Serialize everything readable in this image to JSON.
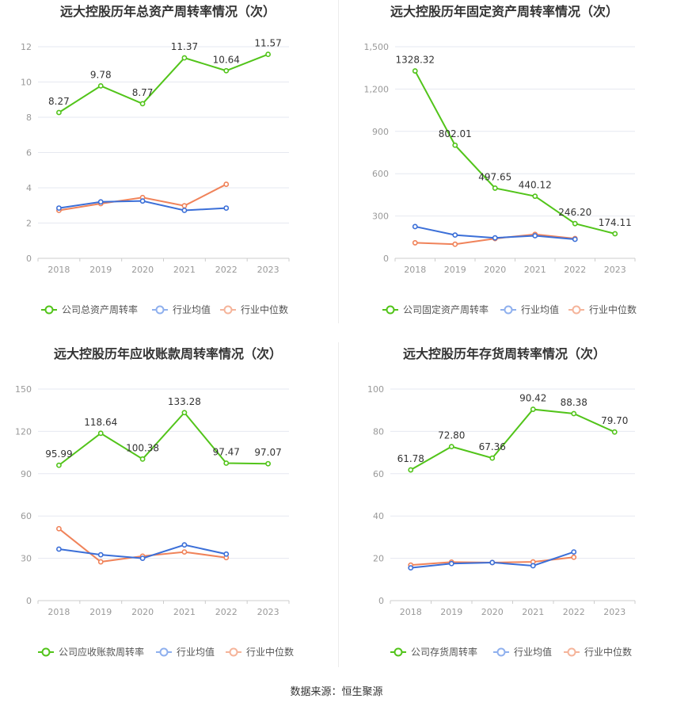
{
  "footer": {
    "source": "数据来源：恒生聚源"
  },
  "legend": {
    "company_total": "公司总资产周转率",
    "company_fixed": "公司固定资产周转率",
    "company_ar": "公司应收账款周转率",
    "company_inv": "公司存货周转率",
    "industry_avg": "行业均值",
    "industry_median": "行业中位数"
  },
  "colors": {
    "company": "#52c41a",
    "avg": "#3b6fd8",
    "median": "#f0835a",
    "grid": "#e6e8f0",
    "axis": "#999999",
    "title": "#333333"
  },
  "chart_data": [
    {
      "type": "line",
      "title": "远大控股历年总资产周转率情况（次）",
      "categories": [
        "2018",
        "2019",
        "2020",
        "2021",
        "2022",
        "2023"
      ],
      "ylim": [
        0,
        12
      ],
      "yticks": [
        0,
        2,
        4,
        6,
        8,
        10,
        12
      ],
      "ytick_labels": [
        "0",
        "2",
        "4",
        "6",
        "8",
        "10",
        "12"
      ],
      "series": [
        {
          "name": "公司总资产周转率",
          "values": [
            8.27,
            9.78,
            8.77,
            11.37,
            10.64,
            11.57
          ],
          "labels": [
            "8.27",
            "9.78",
            "8.77",
            "11.37",
            "10.64",
            "11.57"
          ]
        },
        {
          "name": "行业均值",
          "values": [
            2.85,
            3.2,
            3.25,
            2.72,
            2.85,
            null
          ]
        },
        {
          "name": "行业中位数",
          "values": [
            2.72,
            3.1,
            3.45,
            2.98,
            4.2,
            null
          ]
        }
      ]
    },
    {
      "type": "line",
      "title": "远大控股历年固定资产周转率情况（次）",
      "categories": [
        "2018",
        "2019",
        "2020",
        "2021",
        "2022",
        "2023"
      ],
      "ylim": [
        0,
        1500
      ],
      "yticks": [
        0,
        300,
        600,
        900,
        1200,
        1500
      ],
      "ytick_labels": [
        "0",
        "300",
        "600",
        "900",
        "1,200",
        "1,500"
      ],
      "series": [
        {
          "name": "公司固定资产周转率",
          "values": [
            1328.32,
            802.01,
            497.65,
            440.12,
            246.2,
            174.11
          ],
          "labels": [
            "1328.32",
            "802.01",
            "497.65",
            "440.12",
            "246.20",
            "174.11"
          ]
        },
        {
          "name": "行业均值",
          "values": [
            225,
            165,
            145,
            160,
            135,
            null
          ]
        },
        {
          "name": "行业中位数",
          "values": [
            110,
            100,
            140,
            170,
            140,
            null
          ]
        }
      ]
    },
    {
      "type": "line",
      "title": "远大控股历年应收账款周转率情况（次）",
      "categories": [
        "2018",
        "2019",
        "2020",
        "2021",
        "2022",
        "2023"
      ],
      "ylim": [
        0,
        150
      ],
      "yticks": [
        0,
        30,
        60,
        90,
        120,
        150
      ],
      "ytick_labels": [
        "0",
        "30",
        "60",
        "90",
        "120",
        "150"
      ],
      "series": [
        {
          "name": "公司应收账款周转率",
          "values": [
            95.99,
            118.64,
            100.38,
            133.28,
            97.47,
            97.07
          ],
          "labels": [
            "95.99",
            "118.64",
            "100.38",
            "133.28",
            "97.47",
            "97.07"
          ]
        },
        {
          "name": "行业均值",
          "values": [
            36.5,
            32.5,
            30,
            39.5,
            33,
            null
          ]
        },
        {
          "name": "行业中位数",
          "values": [
            51,
            27.5,
            31.5,
            34.5,
            30.5,
            null
          ]
        }
      ]
    },
    {
      "type": "line",
      "title": "远大控股历年存货周转率情况（次）",
      "categories": [
        "2018",
        "2019",
        "2020",
        "2021",
        "2022",
        "2023"
      ],
      "ylim": [
        0,
        100
      ],
      "yticks": [
        0,
        20,
        40,
        60,
        80,
        100
      ],
      "ytick_labels": [
        "0",
        "20",
        "40",
        "60",
        "80",
        "100"
      ],
      "series": [
        {
          "name": "公司存货周转率",
          "values": [
            61.78,
            72.8,
            67.36,
            90.42,
            88.38,
            79.7
          ],
          "labels": [
            "61.78",
            "72.80",
            "67.36",
            "90.42",
            "88.38",
            "79.70"
          ]
        },
        {
          "name": "行业均值",
          "values": [
            15.5,
            17.5,
            18,
            16.5,
            23,
            null
          ]
        },
        {
          "name": "行业中位数",
          "values": [
            16.8,
            18.2,
            18,
            18.3,
            20.5,
            null
          ]
        }
      ]
    }
  ]
}
